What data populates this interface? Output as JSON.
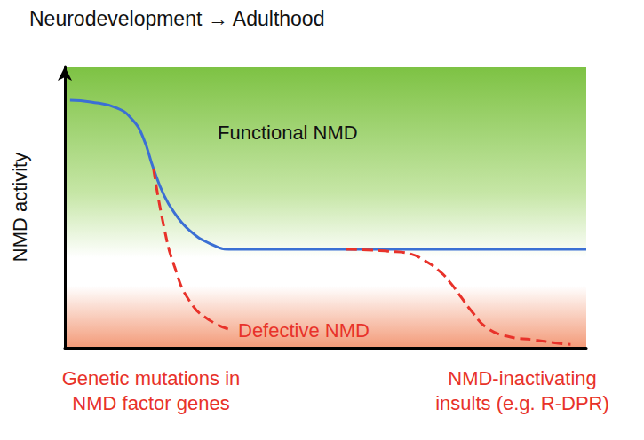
{
  "chart_data": {
    "type": "line",
    "title": "Neurodevelopment → Adulthood",
    "y_label": "NMD activity",
    "x": [
      1,
      5,
      10,
      13,
      15,
      17,
      19,
      21,
      24,
      28,
      32,
      36,
      40,
      45,
      50,
      54,
      58,
      62,
      66,
      69,
      72,
      74,
      76,
      78,
      81,
      85,
      90,
      95,
      97,
      100
    ],
    "series": [
      {
        "color": "#3b6fd4",
        "line_style": "solid",
        "values": [
          88,
          87.4,
          85.2,
          81,
          74.8,
          63.7,
          54.3,
          48,
          41.6,
          36.9,
          35,
          35,
          35,
          35,
          35,
          35,
          35,
          35,
          35,
          35,
          35,
          35,
          35,
          35,
          35,
          35,
          35,
          35,
          35,
          35
        ]
      },
      {
        "color": "#e8322a",
        "line_style": "dashed",
        "values": [
          null,
          null,
          null,
          null,
          null,
          63.7,
          43,
          29,
          16.4,
          9.5,
          6.3,
          null,
          null,
          null,
          null,
          null,
          null,
          null,
          null,
          null,
          null,
          null,
          null,
          null,
          null,
          null,
          null,
          null,
          null,
          null
        ]
      },
      {
        "color": "#e8322a",
        "line_style": "dashed",
        "values": [
          null,
          null,
          null,
          null,
          null,
          null,
          null,
          null,
          null,
          null,
          null,
          null,
          null,
          null,
          null,
          35,
          34.8,
          34.3,
          33.5,
          31,
          27,
          23,
          18,
          13,
          7,
          4,
          2.8,
          1.5,
          1.2,
          null
        ]
      }
    ],
    "xlim": [
      0,
      100
    ],
    "ylim": [
      0,
      100
    ],
    "tick_labels": false,
    "grid": false,
    "annotations": [
      "Functional NMD",
      "Defective NMD",
      "Genetic mutations in\nNMD factor genes",
      "NMD-inactivating\ninsults (e.g. R-DPR)"
    ]
  }
}
